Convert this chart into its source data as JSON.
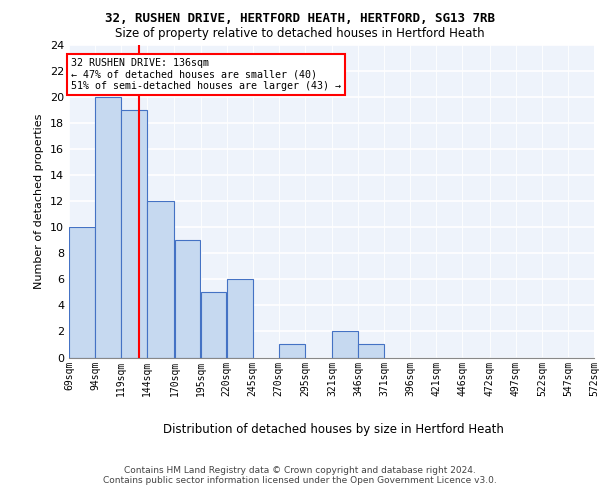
{
  "title1": "32, RUSHEN DRIVE, HERTFORD HEATH, HERTFORD, SG13 7RB",
  "title2": "Size of property relative to detached houses in Hertford Heath",
  "xlabel": "Distribution of detached houses by size in Hertford Heath",
  "ylabel": "Number of detached properties",
  "bar_edges": [
    69,
    94,
    119,
    144,
    170,
    195,
    220,
    245,
    270,
    295,
    321,
    346,
    371,
    396,
    421,
    446,
    472,
    497,
    522,
    547,
    572
  ],
  "bar_heights": [
    10,
    20,
    19,
    12,
    9,
    5,
    6,
    0,
    1,
    0,
    2,
    1,
    0,
    0,
    0,
    0,
    0,
    0,
    0,
    0
  ],
  "bar_color": "#c6d9f0",
  "bar_edgecolor": "#4472c4",
  "tick_labels": [
    "69sqm",
    "94sqm",
    "119sqm",
    "144sqm",
    "170sqm",
    "195sqm",
    "220sqm",
    "245sqm",
    "270sqm",
    "295sqm",
    "321sqm",
    "346sqm",
    "371sqm",
    "396sqm",
    "421sqm",
    "446sqm",
    "472sqm",
    "497sqm",
    "522sqm",
    "547sqm",
    "572sqm"
  ],
  "ylim": [
    0,
    24
  ],
  "yticks": [
    0,
    2,
    4,
    6,
    8,
    10,
    12,
    14,
    16,
    18,
    20,
    22,
    24
  ],
  "red_line_x": 136,
  "annotation_line1": "32 RUSHEN DRIVE: 136sqm",
  "annotation_line2": "← 47% of detached houses are smaller (40)",
  "annotation_line3": "51% of semi-detached houses are larger (43) →",
  "footer1": "Contains HM Land Registry data © Crown copyright and database right 2024.",
  "footer2": "Contains public sector information licensed under the Open Government Licence v3.0.",
  "background_color": "#eef3fb",
  "grid_color": "#ffffff"
}
